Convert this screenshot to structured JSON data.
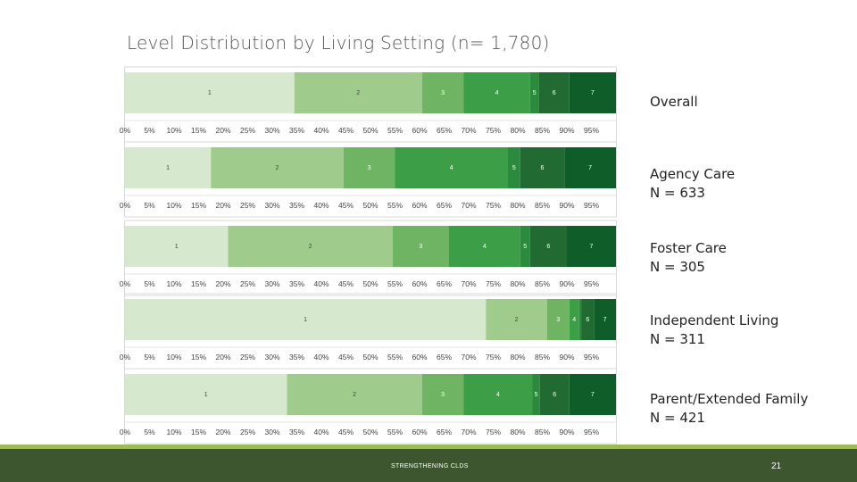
{
  "title": "Level Distribution by Living Setting (n= 1,780)",
  "colors": [
    "#d6e8cd",
    "#9fcc8c",
    "#6fb462",
    "#3c9e46",
    "#2b8a3c",
    "#216b32",
    "#0f5e2a"
  ],
  "chart_data": [
    {
      "type": "stacked-bar",
      "name": "Overall",
      "label": [
        "Overall"
      ],
      "levels": [
        "1",
        "2",
        "3",
        "4",
        "5",
        "6",
        "7"
      ],
      "values": [
        34.5,
        26,
        8.5,
        13.5,
        1.8,
        6.2,
        9.5
      ],
      "ticks": [
        "0%",
        "5%",
        "10%",
        "15%",
        "20%",
        "25%",
        "30%",
        "35%",
        "40%",
        "45%",
        "50%",
        "55%",
        "60%",
        "65%",
        "70%",
        "75%",
        "80%",
        "85%",
        "90%",
        "95%"
      ]
    },
    {
      "type": "stacked-bar",
      "name": "Agency Care",
      "label": [
        "Agency Care",
        "N = 633"
      ],
      "levels": [
        "1",
        "2",
        "3",
        "4",
        "5",
        "6",
        "7"
      ],
      "values": [
        17.5,
        27,
        10.5,
        23,
        2.5,
        9,
        10.5
      ],
      "ticks": [
        "0%",
        "5%",
        "10%",
        "15%",
        "20%",
        "25%",
        "30%",
        "35%",
        "40%",
        "45%",
        "50%",
        "55%",
        "60%",
        "65%",
        "70%",
        "75%",
        "80%",
        "85%",
        "90%",
        "95%"
      ]
    },
    {
      "type": "stacked-bar",
      "name": "Foster Care",
      "label": [
        "Foster Care",
        "N = 305"
      ],
      "levels": [
        "1",
        "2",
        "3",
        "4",
        "5",
        "6",
        "7"
      ],
      "values": [
        21,
        33.5,
        11.5,
        14.5,
        2,
        7.5,
        10
      ],
      "ticks": [
        "0%",
        "5%",
        "10%",
        "15%",
        "20%",
        "25%",
        "30%",
        "35%",
        "40%",
        "45%",
        "50%",
        "55%",
        "60%",
        "65%",
        "70%",
        "75%",
        "80%",
        "85%",
        "90%",
        "95%"
      ]
    },
    {
      "type": "stacked-bar",
      "name": "Independent Living",
      "label": [
        "Independent Living",
        "N = 311"
      ],
      "levels": [
        "1",
        "2",
        "3",
        "4",
        "5",
        "6",
        "7"
      ],
      "values": [
        73.5,
        12.5,
        4.5,
        2,
        0.5,
        2.5,
        4.5
      ],
      "ticks": [
        "0%",
        "5%",
        "10%",
        "15%",
        "20%",
        "25%",
        "30%",
        "35%",
        "40%",
        "45%",
        "50%",
        "55%",
        "60%",
        "65%",
        "70%",
        "75%",
        "80%",
        "85%",
        "90%",
        "95%"
      ]
    },
    {
      "type": "stacked-bar",
      "name": "Parent/Extended Family",
      "label": [
        "Parent/Extended Family",
        "N = 421"
      ],
      "levels": [
        "1",
        "2",
        "3",
        "4",
        "5",
        "6",
        "7"
      ],
      "values": [
        33,
        27.5,
        8.5,
        14,
        1.5,
        6,
        9.5
      ],
      "ticks": [
        "0%",
        "5%",
        "10%",
        "15%",
        "20%",
        "25%",
        "30%",
        "35%",
        "40%",
        "45%",
        "50%",
        "55%",
        "60%",
        "65%",
        "70%",
        "75%",
        "80%",
        "85%",
        "90%",
        "95%"
      ]
    }
  ],
  "footer": {
    "text": "STRENGTHENING CLDS",
    "page": "21"
  }
}
